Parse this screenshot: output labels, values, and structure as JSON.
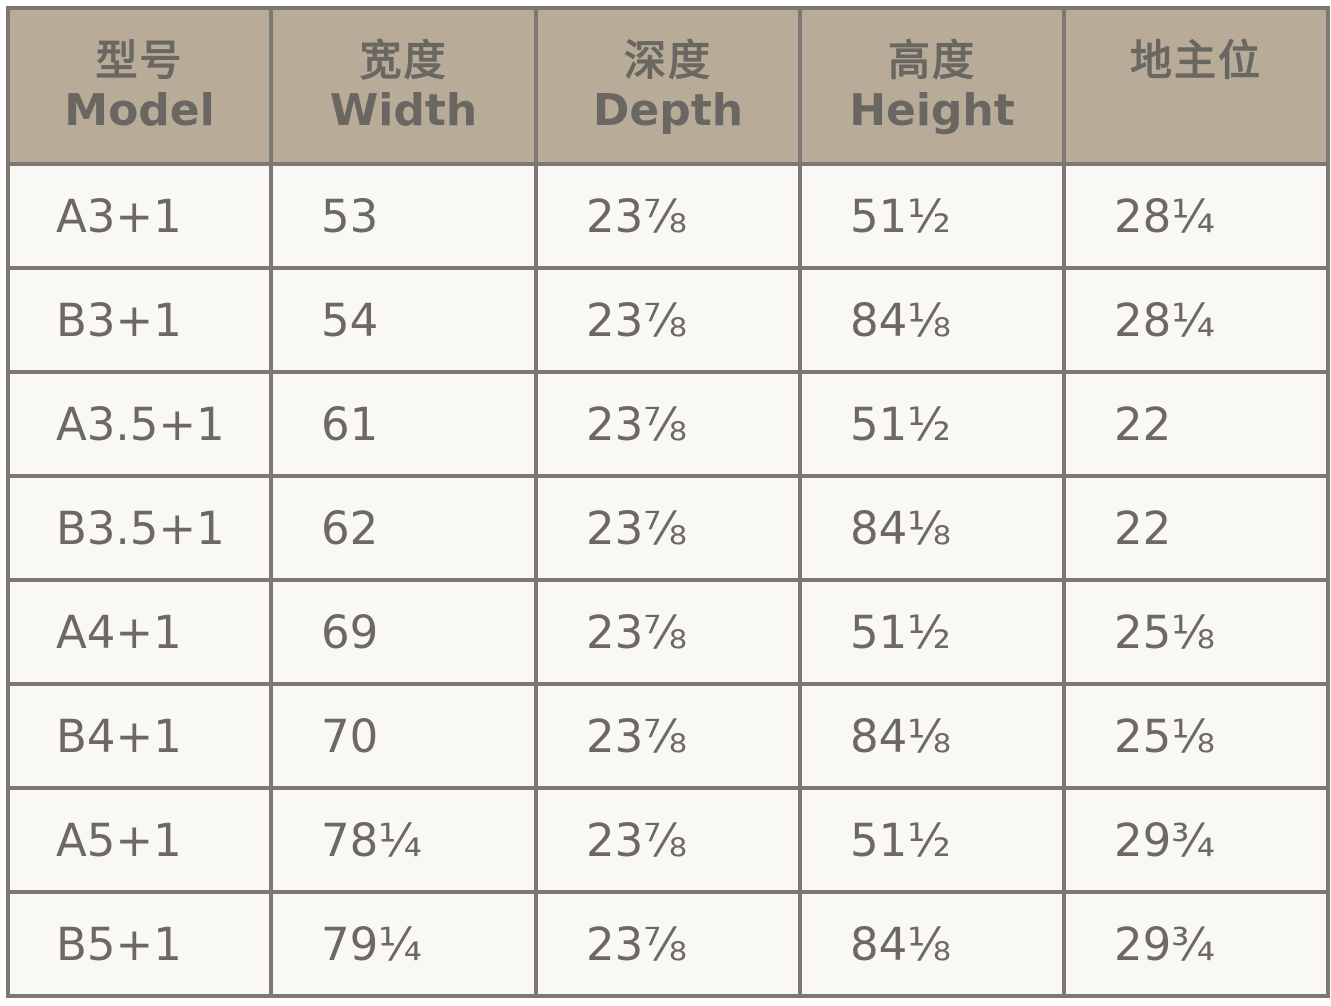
{
  "headers": [
    {
      "zh": "型号",
      "en": "Model"
    },
    {
      "zh": "宽度",
      "en": "Width"
    },
    {
      "zh": "深度",
      "en": "Depth"
    },
    {
      "zh": "高度",
      "en": "Height"
    },
    {
      "zh": "地主位",
      "en": ""
    }
  ],
  "rows": [
    [
      "A3+1",
      "53",
      "23⅞",
      "51½",
      "28¼"
    ],
    [
      "B3+1",
      "54",
      "23⅞",
      "84⅛",
      "28¼"
    ],
    [
      "A3.5+1",
      "61",
      "23⅞",
      "51½",
      "22"
    ],
    [
      "B3.5+1",
      "62",
      "23⅞",
      "84⅛",
      "22"
    ],
    [
      "A4+1",
      "69",
      "23⅞",
      "51½",
      "25⅛"
    ],
    [
      "B4+1",
      "70",
      "23⅞",
      "84⅛",
      "25⅛"
    ],
    [
      "A5+1",
      "78¼",
      "23⅞",
      "51½",
      "29¾"
    ],
    [
      "B5+1",
      "79¼",
      "23⅞",
      "84⅛",
      "29¾"
    ]
  ],
  "colors": {
    "header_bg": "#b8ac98",
    "body_bg": "#f9f8f4",
    "border": "#7d7873",
    "text": "#6c6864"
  }
}
